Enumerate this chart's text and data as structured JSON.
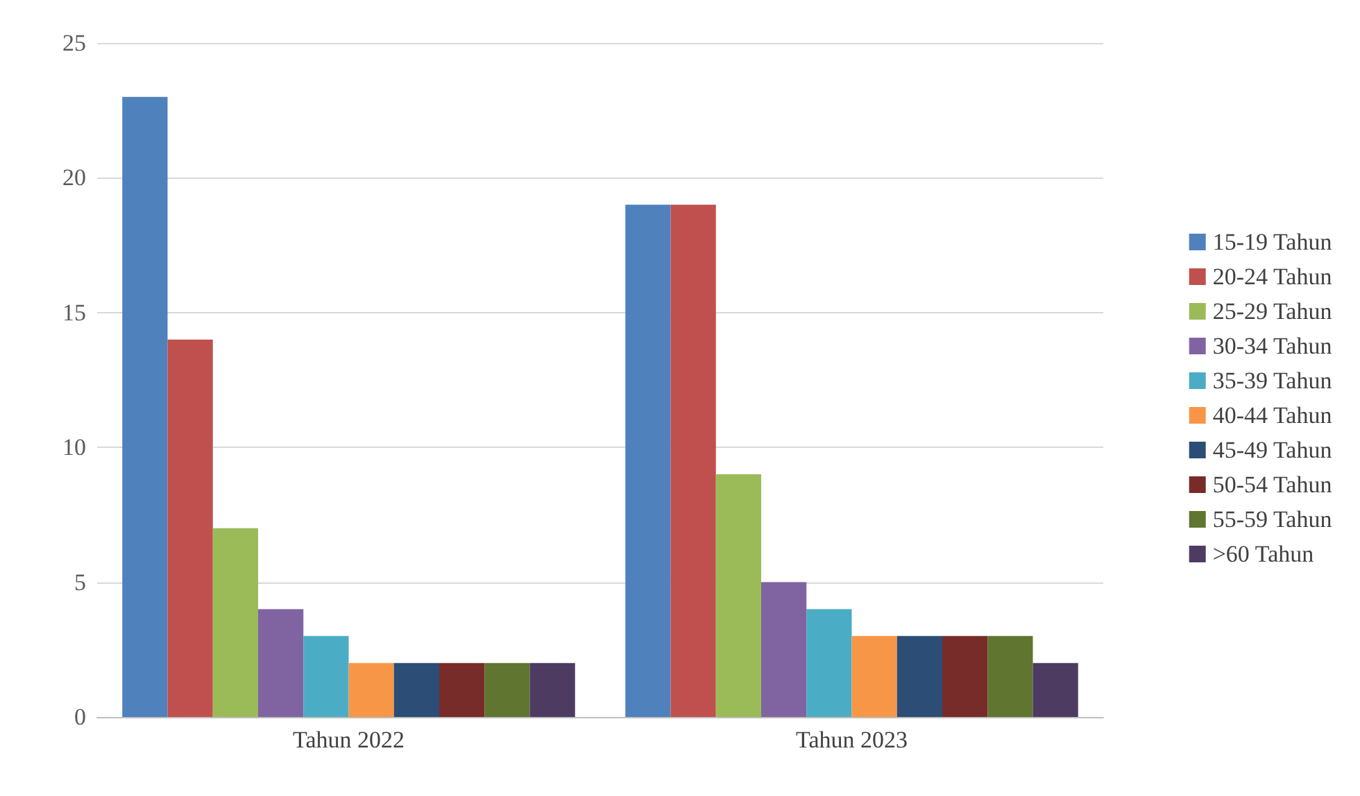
{
  "chart_data": {
    "type": "bar",
    "categories": [
      "Tahun 2022",
      "Tahun 2023"
    ],
    "series": [
      {
        "name": "15-19 Tahun",
        "color": "#4f81bd",
        "values": [
          23,
          19
        ]
      },
      {
        "name": "20-24 Tahun",
        "color": "#c0504d",
        "values": [
          14,
          19
        ]
      },
      {
        "name": "25-29 Tahun",
        "color": "#9bbb59",
        "values": [
          7,
          9
        ]
      },
      {
        "name": "30-34 Tahun",
        "color": "#8064a2",
        "values": [
          4,
          5
        ]
      },
      {
        "name": "35-39 Tahun",
        "color": "#4bacc6",
        "values": [
          3,
          4
        ]
      },
      {
        "name": "40-44 Tahun",
        "color": "#f79646",
        "values": [
          2,
          3
        ]
      },
      {
        "name": "45-49 Tahun",
        "color": "#2c4d75",
        "values": [
          2,
          3
        ]
      },
      {
        "name": "50-54 Tahun",
        "color": "#772c2a",
        "values": [
          2,
          3
        ]
      },
      {
        "name": "55-59 Tahun",
        "color": "#5f7530",
        "values": [
          2,
          3
        ]
      },
      {
        "name": ">60 Tahun",
        "color": "#4d3b62",
        "values": [
          2,
          2
        ]
      }
    ],
    "ylim": [
      0,
      25
    ],
    "yticks": [
      0,
      5,
      10,
      15,
      20,
      25
    ],
    "grid": "y",
    "legend": "right"
  }
}
